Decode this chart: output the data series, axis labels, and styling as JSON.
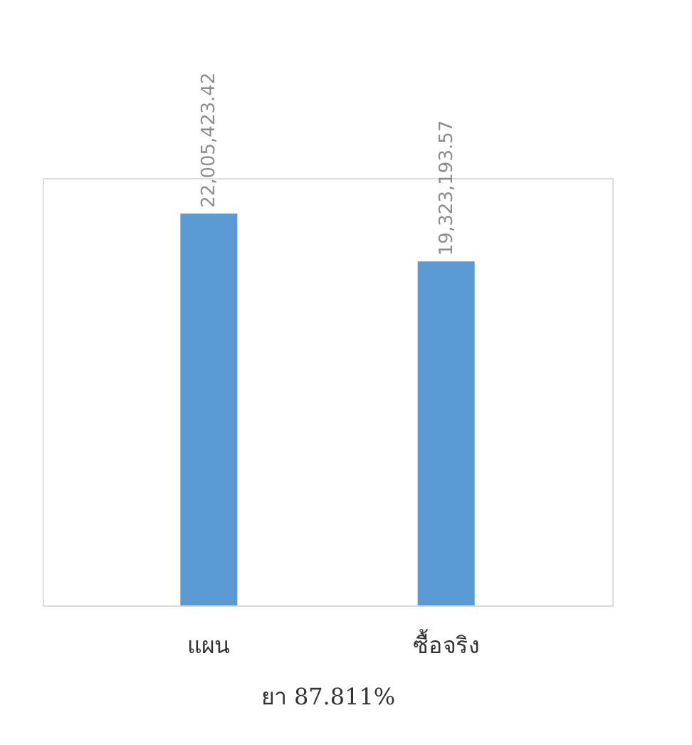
{
  "chart_data": {
    "type": "bar",
    "categories": [
      "แผน",
      "ซื้อจริง"
    ],
    "values": [
      22005423.42,
      19323193.57
    ],
    "value_labels": [
      "22,005,423.42",
      "19,323,193.57"
    ],
    "color": "#5b9bd5",
    "tick_labels": "x",
    "xlabel": "ยา 87.811%",
    "grid": false
  }
}
